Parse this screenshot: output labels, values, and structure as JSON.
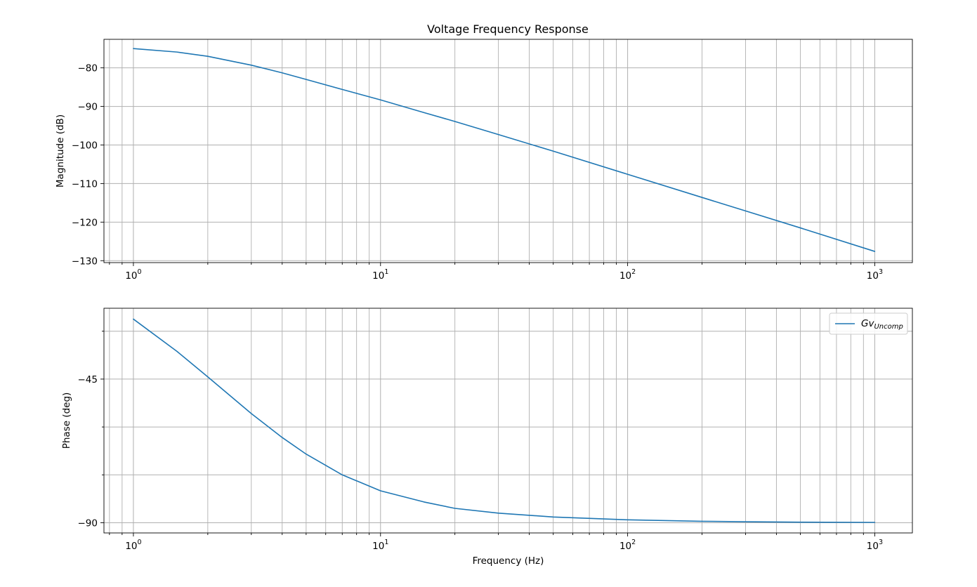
{
  "figure": {
    "title": "Voltage Frequency Response"
  },
  "chart_data": [
    {
      "type": "line",
      "title": "Voltage Frequency Response",
      "xlabel": "",
      "ylabel": "Magnitude (dB)",
      "xscale": "log",
      "xlim": [
        0.76,
        1420
      ],
      "ylim": [
        -130.5,
        -72.6
      ],
      "grid": true,
      "x_ticks": [
        1,
        10,
        100,
        1000
      ],
      "x_tick_labels": [
        "10",
        "10",
        "10",
        "10"
      ],
      "x_tick_exponents": [
        "0",
        "1",
        "2",
        "3"
      ],
      "y_ticks": [
        -80,
        -90,
        -100,
        -110,
        -120,
        -130
      ],
      "y_tick_labels": [
        "−80",
        "−90",
        "−100",
        "−110",
        "−120",
        "−130"
      ],
      "series": [
        {
          "color": "#1f77b4",
          "x": [
            1,
            1.5,
            2,
            3,
            4,
            5,
            7,
            10,
            15,
            20,
            30,
            50,
            100,
            200,
            300,
            500,
            1000
          ],
          "y": [
            -75.0,
            -75.9,
            -77.0,
            -79.3,
            -81.3,
            -83.0,
            -85.6,
            -88.3,
            -91.6,
            -93.9,
            -97.3,
            -101.6,
            -107.6,
            -113.6,
            -117.1,
            -121.5,
            -127.6
          ]
        }
      ]
    },
    {
      "type": "line",
      "title": "",
      "xlabel": "Frequency (Hz)",
      "ylabel": "Phase (deg)",
      "xscale": "log",
      "xlim": [
        0.76,
        1420
      ],
      "ylim": [
        -93.2,
        -22.8
      ],
      "grid": true,
      "x_ticks": [
        1,
        10,
        100,
        1000
      ],
      "x_tick_labels": [
        "10",
        "10",
        "10",
        "10"
      ],
      "x_tick_exponents": [
        "0",
        "1",
        "2",
        "3"
      ],
      "y_ticks": [
        -45,
        -90
      ],
      "y_tick_labels": [
        "−45",
        "−90"
      ],
      "y_minor_ticks": [
        -30,
        -60,
        -75
      ],
      "legend": {
        "placement": "top-right",
        "entries": [
          "Gv",
          "Uncomp"
        ]
      },
      "series": [
        {
          "name": "Gv_Uncomp",
          "color": "#1f77b4",
          "x": [
            1,
            1.5,
            2,
            3,
            4,
            5,
            7,
            10,
            15,
            20,
            30,
            50,
            100,
            200,
            300,
            500,
            1000
          ],
          "y": [
            -26.2,
            -36.3,
            -44.3,
            -55.8,
            -63.3,
            -68.5,
            -75.0,
            -80.0,
            -83.5,
            -85.5,
            -87.0,
            -88.2,
            -89.1,
            -89.55,
            -89.7,
            -89.82,
            -89.9
          ]
        }
      ]
    }
  ]
}
